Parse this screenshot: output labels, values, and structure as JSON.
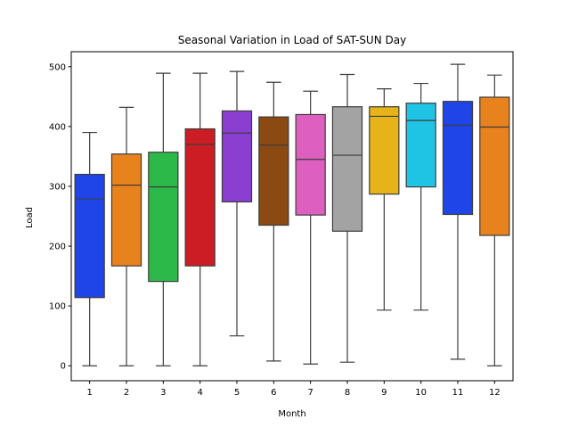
{
  "chart_data": {
    "type": "box",
    "title": "Seasonal Variation in Load of SAT-SUN Day",
    "xlabel": "Month",
    "ylabel": "Load",
    "ylim": [
      -25,
      525
    ],
    "yticks": [
      0,
      100,
      200,
      300,
      400,
      500
    ],
    "grid": false,
    "legend": "none",
    "categories": [
      "1",
      "2",
      "3",
      "4",
      "5",
      "6",
      "7",
      "8",
      "9",
      "10",
      "11",
      "12"
    ],
    "boxes": [
      {
        "category": "1",
        "min": 0,
        "q1": 114,
        "median": 279,
        "q3": 320,
        "max": 390,
        "color": "#1f44e8"
      },
      {
        "category": "2",
        "min": 0,
        "q1": 167,
        "median": 302,
        "q3": 354,
        "max": 432,
        "color": "#e8821c"
      },
      {
        "category": "3",
        "min": 0,
        "q1": 141,
        "median": 299,
        "q3": 357,
        "max": 489,
        "color": "#2db84a"
      },
      {
        "category": "4",
        "min": 0,
        "q1": 167,
        "median": 370,
        "q3": 396,
        "max": 489,
        "color": "#cc1c24"
      },
      {
        "category": "5",
        "min": 50,
        "q1": 274,
        "median": 389,
        "q3": 426,
        "max": 492,
        "color": "#8b3fd1"
      },
      {
        "category": "6",
        "min": 8,
        "q1": 235,
        "median": 369,
        "q3": 416,
        "max": 474,
        "color": "#8b4a12"
      },
      {
        "category": "7",
        "min": 3,
        "q1": 252,
        "median": 345,
        "q3": 420,
        "max": 459,
        "color": "#dd5fbf"
      },
      {
        "category": "8",
        "min": 6,
        "q1": 225,
        "median": 352,
        "q3": 433,
        "max": 487,
        "color": "#a3a3a3"
      },
      {
        "category": "9",
        "min": 93,
        "q1": 287,
        "median": 417,
        "q3": 433,
        "max": 463,
        "color": "#e6b419"
      },
      {
        "category": "10",
        "min": 93,
        "q1": 299,
        "median": 410,
        "q3": 439,
        "max": 472,
        "color": "#1fc4e4"
      },
      {
        "category": "11",
        "min": 11,
        "q1": 253,
        "median": 402,
        "q3": 442,
        "max": 504,
        "color": "#1f44e8"
      },
      {
        "category": "12",
        "min": 0,
        "q1": 218,
        "median": 399,
        "q3": 449,
        "max": 486,
        "color": "#e8821c"
      }
    ]
  }
}
